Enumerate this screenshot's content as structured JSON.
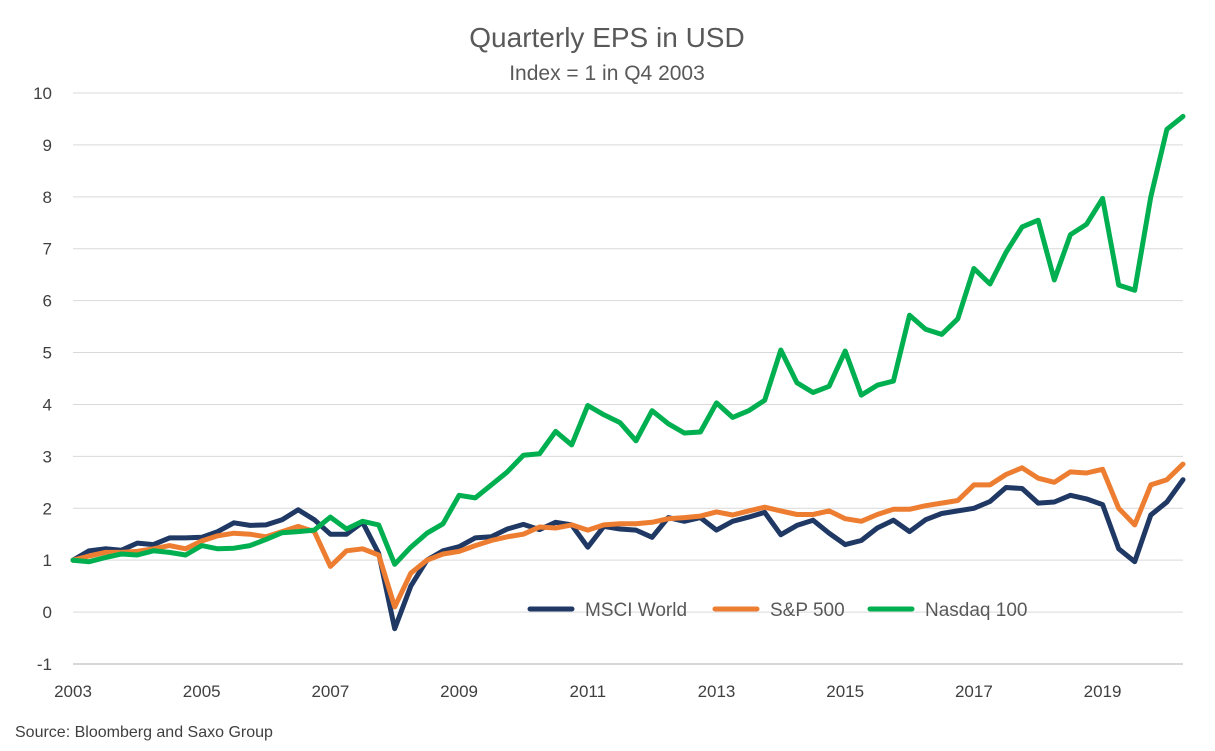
{
  "chart_data": {
    "type": "line",
    "title": "Quarterly EPS in USD",
    "subtitle": "Index = 1 in Q4 2003",
    "source": "Source: Bloomberg and Saxo Group",
    "xlabel": "",
    "ylabel": "",
    "ylim": [
      -1,
      10
    ],
    "yticks": [
      "10",
      "9",
      "8",
      "7",
      "6",
      "5",
      "4",
      "3",
      "2",
      "1",
      "0",
      "-1"
    ],
    "xlim": [
      2003,
      2020.25
    ],
    "xticks": [
      "2003",
      "2005",
      "2007",
      "2009",
      "2011",
      "2013",
      "2015",
      "2017",
      "2019"
    ],
    "grid": "horizontal",
    "legend_position": "lower-center",
    "series": [
      {
        "name": "MSCI World",
        "color": "#1f3864",
        "x": [
          2003.0,
          2003.25,
          2003.5,
          2003.75,
          2004.0,
          2004.25,
          2004.5,
          2004.75,
          2005.0,
          2005.25,
          2005.5,
          2005.75,
          2006.0,
          2006.25,
          2006.5,
          2006.75,
          2007.0,
          2007.25,
          2007.5,
          2007.75,
          2008.0,
          2008.25,
          2008.5,
          2008.75,
          2009.0,
          2009.25,
          2009.5,
          2009.75,
          2010.0,
          2010.25,
          2010.5,
          2010.75,
          2011.0,
          2011.25,
          2011.5,
          2011.75,
          2012.0,
          2012.25,
          2012.5,
          2012.75,
          2013.0,
          2013.25,
          2013.5,
          2013.75,
          2014.0,
          2014.25,
          2014.5,
          2014.75,
          2015.0,
          2015.25,
          2015.5,
          2015.75,
          2016.0,
          2016.25,
          2016.5,
          2016.75,
          2017.0,
          2017.25,
          2017.5,
          2017.75,
          2018.0,
          2018.25,
          2018.5,
          2018.75,
          2019.0,
          2019.25,
          2019.5,
          2019.75,
          2020.0,
          2020.25
        ],
        "y": [
          1.0,
          1.18,
          1.22,
          1.19,
          1.33,
          1.3,
          1.43,
          1.43,
          1.44,
          1.55,
          1.72,
          1.67,
          1.68,
          1.78,
          1.97,
          1.78,
          1.5,
          1.5,
          1.73,
          1.13,
          -0.32,
          0.5,
          1.0,
          1.18,
          1.26,
          1.43,
          1.45,
          1.6,
          1.69,
          1.59,
          1.73,
          1.68,
          1.25,
          1.65,
          1.6,
          1.58,
          1.44,
          1.82,
          1.75,
          1.82,
          1.58,
          1.75,
          1.83,
          1.92,
          1.49,
          1.67,
          1.77,
          1.52,
          1.3,
          1.38,
          1.62,
          1.77,
          1.55,
          1.78,
          1.9,
          1.95,
          2.0,
          2.13,
          2.4,
          2.38,
          2.1,
          2.12,
          2.25,
          2.18,
          2.07,
          1.22,
          0.97,
          1.87,
          2.12,
          2.55
        ]
      },
      {
        "name": "S&P 500",
        "color": "#ed7d31",
        "x": [
          2003.0,
          2003.25,
          2003.5,
          2003.75,
          2004.0,
          2004.25,
          2004.5,
          2004.75,
          2005.0,
          2005.25,
          2005.5,
          2005.75,
          2006.0,
          2006.25,
          2006.5,
          2006.75,
          2007.0,
          2007.25,
          2007.5,
          2007.75,
          2008.0,
          2008.25,
          2008.5,
          2008.75,
          2009.0,
          2009.25,
          2009.5,
          2009.75,
          2010.0,
          2010.25,
          2010.5,
          2010.75,
          2011.0,
          2011.25,
          2011.5,
          2011.75,
          2012.0,
          2012.25,
          2012.5,
          2012.75,
          2013.0,
          2013.25,
          2013.5,
          2013.75,
          2014.0,
          2014.25,
          2014.5,
          2014.75,
          2015.0,
          2015.25,
          2015.5,
          2015.75,
          2016.0,
          2016.25,
          2016.5,
          2016.75,
          2017.0,
          2017.25,
          2017.5,
          2017.75,
          2018.0,
          2018.25,
          2018.5,
          2018.75,
          2019.0,
          2019.25,
          2019.5,
          2019.75,
          2020.0,
          2020.25
        ],
        "y": [
          1.0,
          1.08,
          1.15,
          1.15,
          1.17,
          1.22,
          1.28,
          1.22,
          1.37,
          1.47,
          1.52,
          1.5,
          1.45,
          1.55,
          1.65,
          1.55,
          0.88,
          1.18,
          1.22,
          1.1,
          0.1,
          0.75,
          1.0,
          1.12,
          1.17,
          1.28,
          1.38,
          1.45,
          1.5,
          1.64,
          1.62,
          1.68,
          1.58,
          1.68,
          1.7,
          1.7,
          1.73,
          1.8,
          1.82,
          1.85,
          1.93,
          1.87,
          1.95,
          2.02,
          1.95,
          1.88,
          1.88,
          1.95,
          1.8,
          1.75,
          1.88,
          1.98,
          1.98,
          2.05,
          2.1,
          2.15,
          2.45,
          2.45,
          2.65,
          2.78,
          2.58,
          2.5,
          2.7,
          2.68,
          2.75,
          2.0,
          1.68,
          2.45,
          2.55,
          2.85
        ]
      },
      {
        "name": "Nasdaq 100",
        "color": "#00b050",
        "x": [
          2003.0,
          2003.25,
          2003.5,
          2003.75,
          2004.0,
          2004.25,
          2004.5,
          2004.75,
          2005.0,
          2005.25,
          2005.5,
          2005.75,
          2006.0,
          2006.25,
          2006.5,
          2006.75,
          2007.0,
          2007.25,
          2007.5,
          2007.75,
          2008.0,
          2008.25,
          2008.5,
          2008.75,
          2009.0,
          2009.25,
          2009.5,
          2009.75,
          2010.0,
          2010.25,
          2010.5,
          2010.75,
          2011.0,
          2011.25,
          2011.5,
          2011.75,
          2012.0,
          2012.25,
          2012.5,
          2012.75,
          2013.0,
          2013.25,
          2013.5,
          2013.75,
          2014.0,
          2014.25,
          2014.5,
          2014.75,
          2015.0,
          2015.25,
          2015.5,
          2015.75,
          2016.0,
          2016.25,
          2016.5,
          2016.75,
          2017.0,
          2017.25,
          2017.5,
          2017.75,
          2018.0,
          2018.25,
          2018.5,
          2018.75,
          2019.0,
          2019.25,
          2019.5,
          2019.75,
          2020.0,
          2020.25
        ],
        "y": [
          1.0,
          0.97,
          1.05,
          1.12,
          1.1,
          1.18,
          1.15,
          1.1,
          1.28,
          1.22,
          1.23,
          1.28,
          1.4,
          1.53,
          1.55,
          1.58,
          1.83,
          1.6,
          1.75,
          1.68,
          0.92,
          1.25,
          1.52,
          1.7,
          2.25,
          2.2,
          2.45,
          2.7,
          3.02,
          3.05,
          3.48,
          3.22,
          3.98,
          3.8,
          3.65,
          3.3,
          3.88,
          3.63,
          3.45,
          3.47,
          4.03,
          3.75,
          3.88,
          4.08,
          5.05,
          4.42,
          4.23,
          4.35,
          5.03,
          4.18,
          4.37,
          4.45,
          5.72,
          5.45,
          5.35,
          5.65,
          6.62,
          6.32,
          6.93,
          7.42,
          7.55,
          6.4,
          7.27,
          7.47,
          7.97,
          6.3,
          6.2,
          8.0,
          9.3,
          9.55
        ]
      }
    ]
  }
}
